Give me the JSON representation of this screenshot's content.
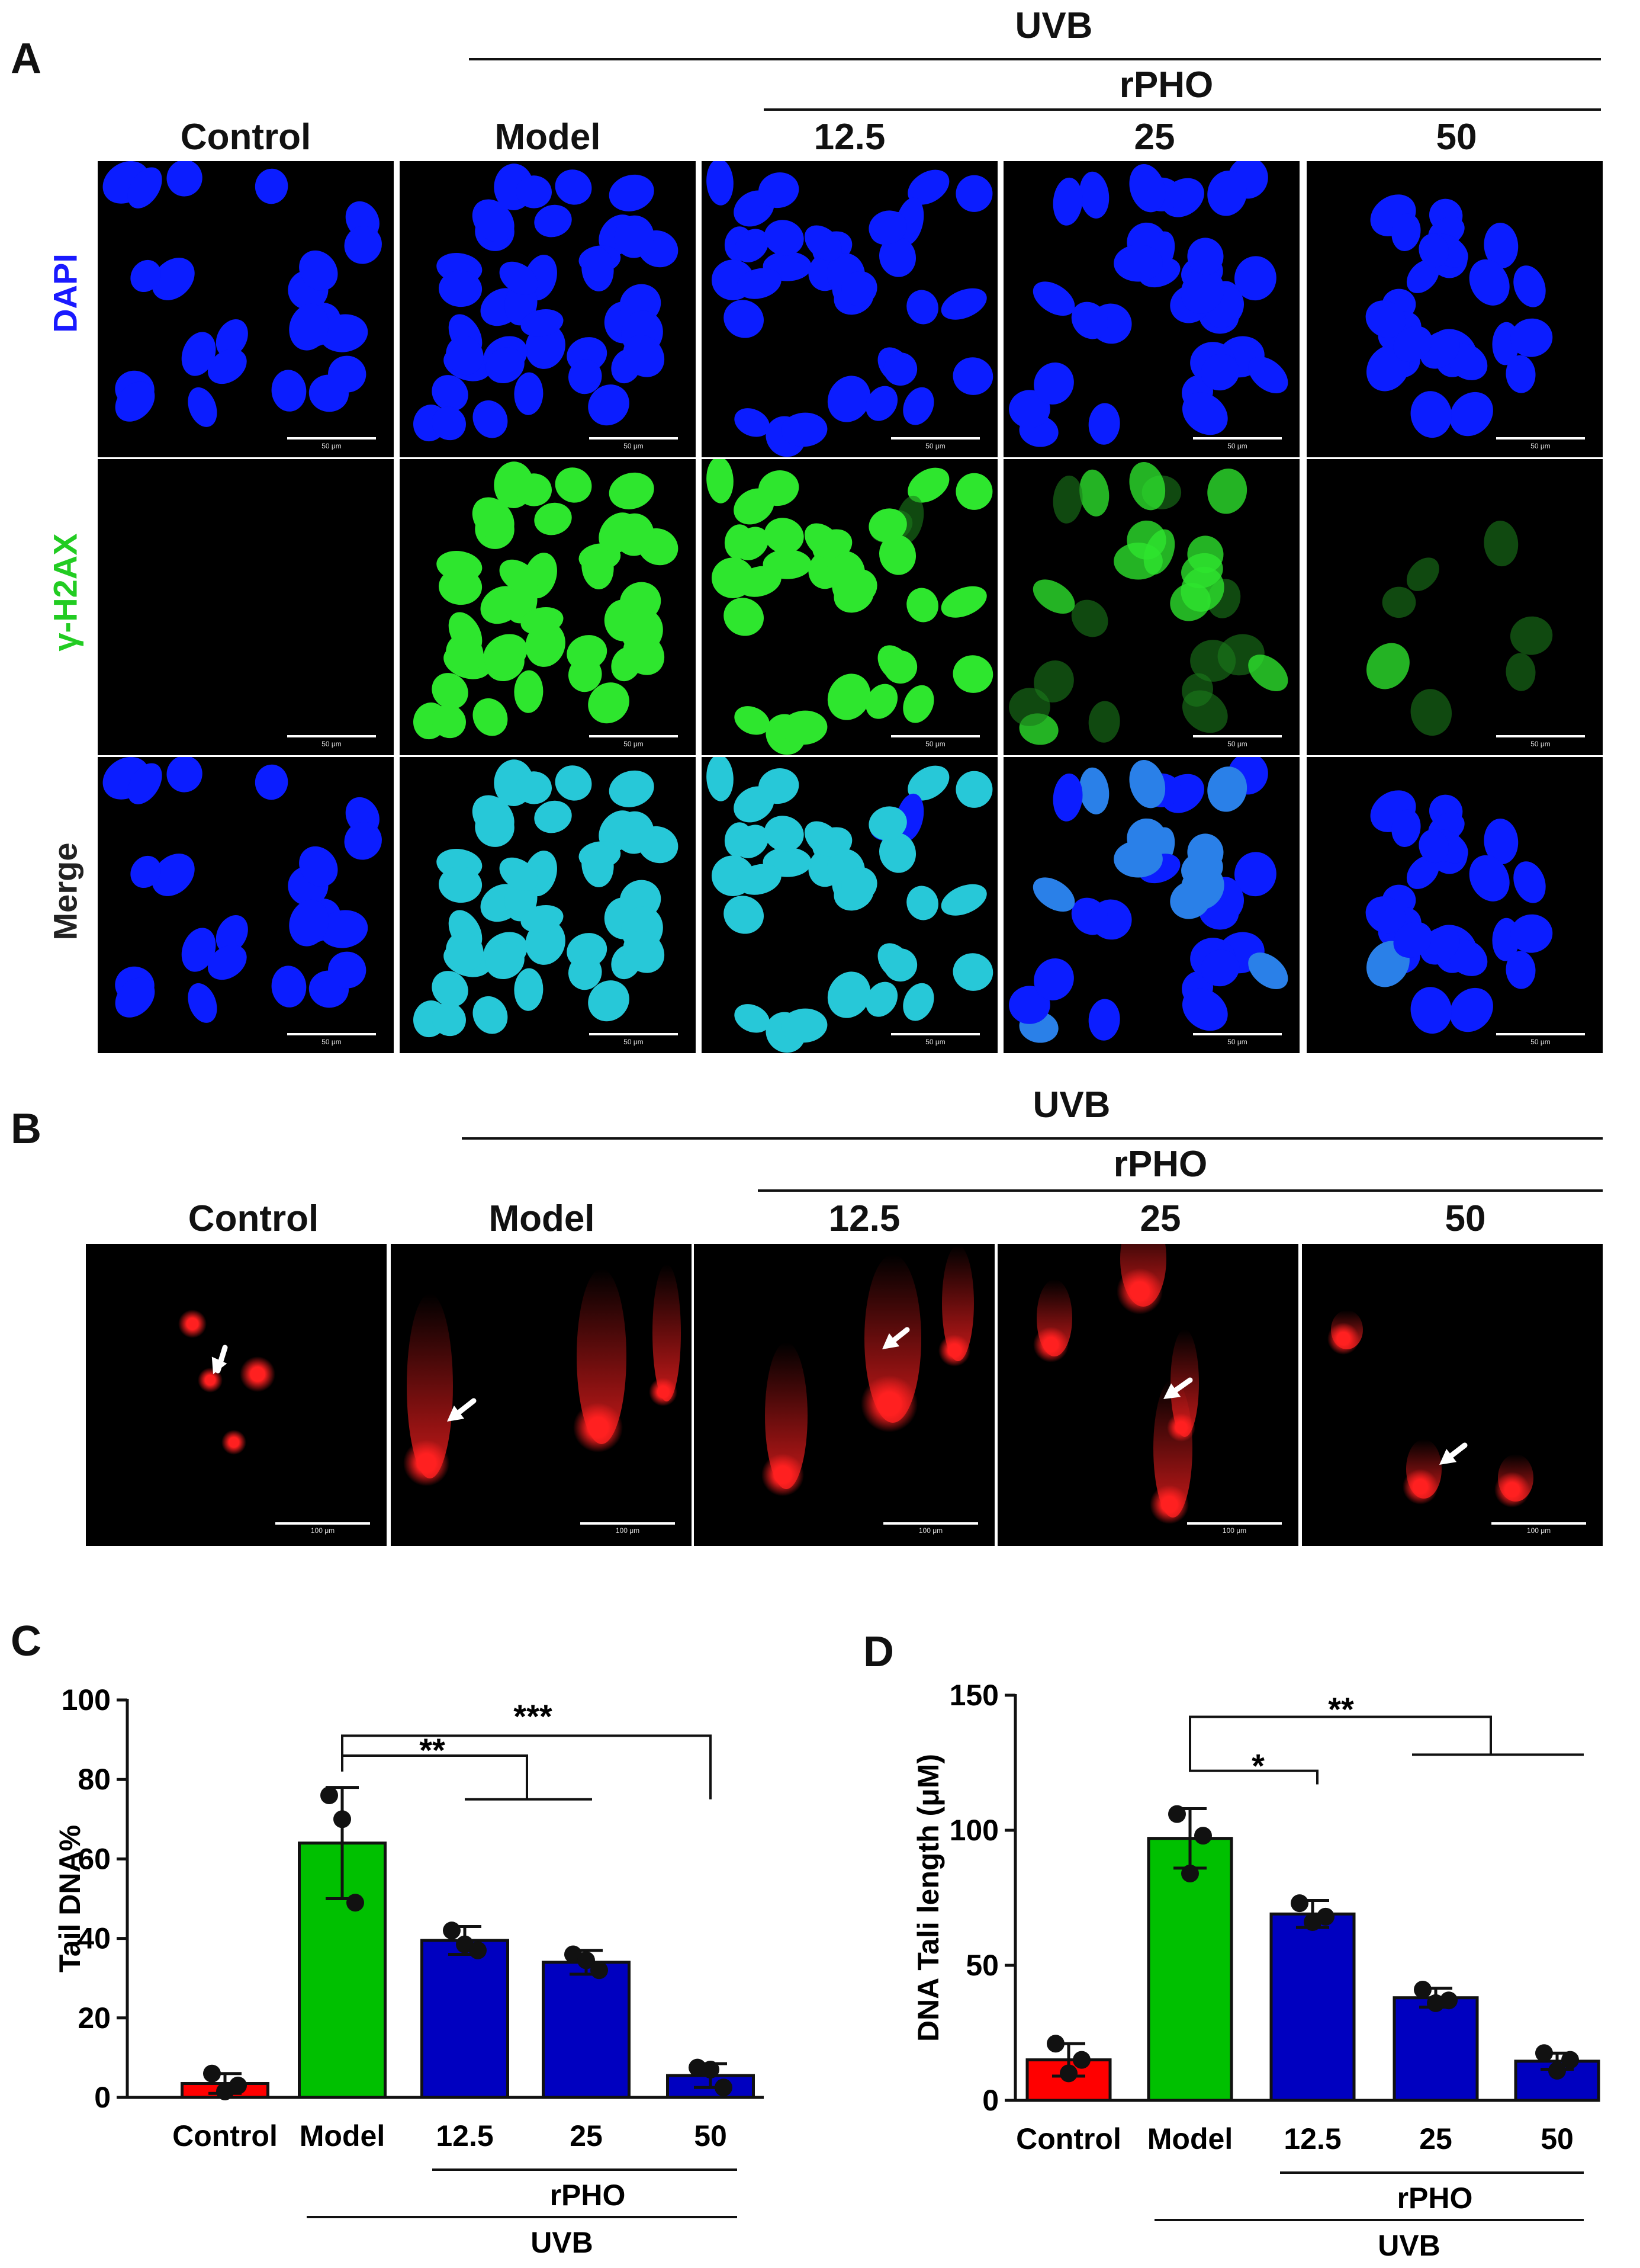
{
  "panel_a": {
    "label": "A",
    "uvb_label": "UVB",
    "rpho_label": "rPHO",
    "columns": [
      "Control",
      "Model",
      "12.5",
      "25",
      "50"
    ],
    "rows": [
      {
        "label": "DAPI",
        "color": "#1a1aff",
        "nucleus_color": "#0a1cff"
      },
      {
        "label": "γ-H2AX",
        "color": "#22cc22",
        "nucleus_color": "#2ee62e"
      },
      {
        "label": "Merge",
        "color": "#222222",
        "nucleus_color": "#0a1cff"
      }
    ],
    "green_intensity": [
      0.0,
      1.0,
      0.9,
      0.45,
      0.1
    ],
    "scale_text": "50 μm"
  },
  "panel_b": {
    "label": "B",
    "uvb_label": "UVB",
    "rpho_label": "rPHO",
    "columns": [
      "Control",
      "Model",
      "12.5",
      "25",
      "50"
    ],
    "comet_color": "#ff2020",
    "scale_text": "100 μm"
  },
  "chart_data": [
    {
      "panel": "C",
      "type": "bar",
      "categories": [
        "Control",
        "Model",
        "12.5",
        "25",
        "50"
      ],
      "values": [
        3.5,
        64,
        39.5,
        34,
        5.5
      ],
      "errors": [
        2.5,
        14,
        3.5,
        3,
        3
      ],
      "points": [
        [
          6,
          1.5,
          3
        ],
        [
          76,
          70,
          49
        ],
        [
          42,
          38.5,
          37
        ],
        [
          36,
          34.5,
          32
        ],
        [
          7.5,
          7,
          2.5
        ]
      ],
      "bar_colors": [
        "#ff0000",
        "#00c000",
        "#0000c0",
        "#0000c0",
        "#0000c0"
      ],
      "ylabel": "Tail DNA%",
      "ylim": [
        0,
        100
      ],
      "yticks": [
        "0",
        "20",
        "40",
        "60",
        "80",
        "100"
      ],
      "group_labels": {
        "rpho": "rPHO",
        "uvb": "UVB"
      },
      "significance": [
        {
          "label": "**"
        },
        {
          "label": "***"
        }
      ]
    },
    {
      "panel": "D",
      "type": "bar",
      "categories": [
        "Control",
        "Model",
        "12.5",
        "25",
        "50"
      ],
      "values": [
        15,
        97,
        69,
        38,
        14.5
      ],
      "errors": [
        6,
        11,
        5,
        3.5,
        3
      ],
      "points": [
        [
          21,
          10,
          15
        ],
        [
          106,
          84,
          98
        ],
        [
          73,
          66,
          68
        ],
        [
          41,
          36,
          37
        ],
        [
          17.5,
          11,
          15
        ]
      ],
      "bar_colors": [
        "#ff0000",
        "#00c000",
        "#0000c0",
        "#0000c0",
        "#0000c0"
      ],
      "ylabel": "DNA Tali length (μM)",
      "ylim": [
        0,
        150
      ],
      "yticks": [
        "0",
        "50",
        "100",
        "150"
      ],
      "group_labels": {
        "rpho": "rPHO",
        "uvb": "UVB"
      },
      "significance": [
        {
          "label": "*"
        },
        {
          "label": "**"
        }
      ]
    }
  ]
}
